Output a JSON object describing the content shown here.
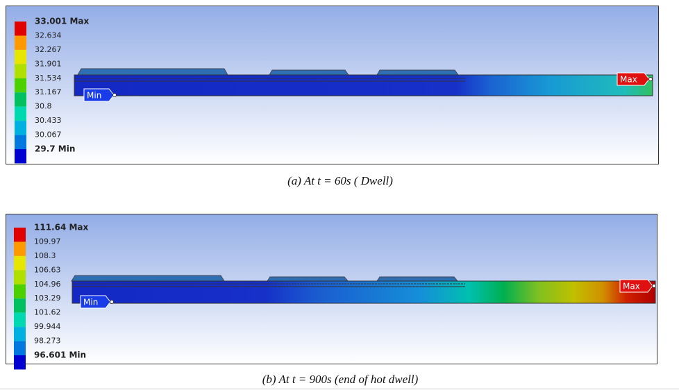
{
  "panels": [
    {
      "legend": [
        "33.001 Max",
        "32.634",
        "32.267",
        "31.901",
        "31.534",
        "31.167",
        "30.8",
        "30.433",
        "30.067",
        "29.7 Min"
      ],
      "min_tag": "Min",
      "max_tag": "Max",
      "caption": "(a)  At t = 60s ( Dwell)"
    },
    {
      "legend": [
        "111.64 Max",
        "109.97",
        "108.3",
        "106.63",
        "104.96",
        "103.29",
        "101.62",
        "99.944",
        "98.273",
        "96.601 Min"
      ],
      "min_tag": "Min",
      "max_tag": "Max",
      "caption": "(b)  At t = 900s (end of hot dwell)"
    }
  ]
}
